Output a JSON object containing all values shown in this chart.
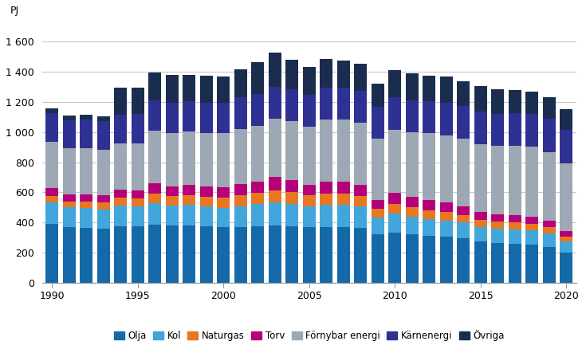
{
  "years": [
    1990,
    1991,
    1992,
    1993,
    1994,
    1995,
    1996,
    1997,
    1998,
    1999,
    2000,
    2001,
    2002,
    2003,
    2004,
    2005,
    2006,
    2007,
    2008,
    2009,
    2010,
    2011,
    2012,
    2013,
    2014,
    2015,
    2016,
    2017,
    2018,
    2019,
    2020
  ],
  "series": {
    "Olja": [
      390,
      370,
      365,
      360,
      375,
      375,
      385,
      380,
      380,
      375,
      370,
      370,
      375,
      380,
      375,
      370,
      370,
      370,
      365,
      325,
      335,
      320,
      310,
      305,
      295,
      275,
      265,
      260,
      255,
      240,
      200
    ],
    "Kol": [
      145,
      130,
      130,
      128,
      138,
      130,
      145,
      135,
      138,
      130,
      128,
      140,
      148,
      155,
      150,
      138,
      148,
      148,
      140,
      110,
      125,
      120,
      115,
      110,
      105,
      95,
      95,
      95,
      95,
      90,
      75
    ],
    "Naturgas": [
      40,
      38,
      42,
      45,
      52,
      55,
      60,
      62,
      65,
      68,
      70,
      72,
      75,
      78,
      78,
      72,
      72,
      72,
      70,
      58,
      65,
      62,
      58,
      55,
      52,
      48,
      45,
      45,
      43,
      38,
      33
    ],
    "Torv": [
      55,
      48,
      50,
      50,
      55,
      55,
      70,
      65,
      65,
      65,
      65,
      72,
      75,
      90,
      80,
      70,
      80,
      82,
      75,
      55,
      70,
      70,
      68,
      65,
      58,
      50,
      50,
      52,
      48,
      42,
      37
    ],
    "Fornybar energi": [
      305,
      305,
      308,
      302,
      305,
      312,
      350,
      352,
      355,
      358,
      362,
      365,
      368,
      385,
      390,
      388,
      415,
      412,
      412,
      408,
      422,
      425,
      440,
      442,
      448,
      452,
      452,
      458,
      462,
      458,
      450
    ],
    "Karnenergi": [
      190,
      188,
      190,
      188,
      192,
      195,
      200,
      200,
      200,
      200,
      200,
      210,
      210,
      210,
      210,
      210,
      210,
      210,
      210,
      210,
      215,
      215,
      215,
      215,
      215,
      215,
      215,
      215,
      215,
      220,
      220
    ],
    "Ovriga": [
      30,
      30,
      30,
      30,
      180,
      175,
      185,
      185,
      175,
      180,
      175,
      185,
      215,
      230,
      195,
      185,
      192,
      182,
      182,
      155,
      178,
      178,
      170,
      178,
      162,
      168,
      162,
      155,
      150,
      145,
      135
    ]
  },
  "colors": {
    "Olja": "#1569a8",
    "Kol": "#41a6d9",
    "Naturgas": "#e87722",
    "Torv": "#b5007a",
    "Fornybar energi": "#9ea8b4",
    "Karnenergi": "#2e3192",
    "Ovriga": "#1a2d4f"
  },
  "labels": {
    "Olja": "Olja",
    "Kol": "Kol",
    "Naturgas": "Naturgas",
    "Torv": "Torv",
    "Fornybar energi": "Förnybar energi",
    "Karnenergi": "Kärnenergi",
    "Ovriga": "Övriga"
  },
  "ylabel": "PJ",
  "ylim": [
    0,
    1700
  ],
  "yticks": [
    0,
    200,
    400,
    600,
    800,
    1000,
    1200,
    1400,
    1600
  ],
  "ytick_labels": [
    "0",
    "200",
    "400",
    "600",
    "800",
    "1 000",
    "1 200",
    "1 400",
    "1 600"
  ],
  "bar_width": 0.75,
  "background_color": "#ffffff",
  "grid_color": "#c8c8c8"
}
